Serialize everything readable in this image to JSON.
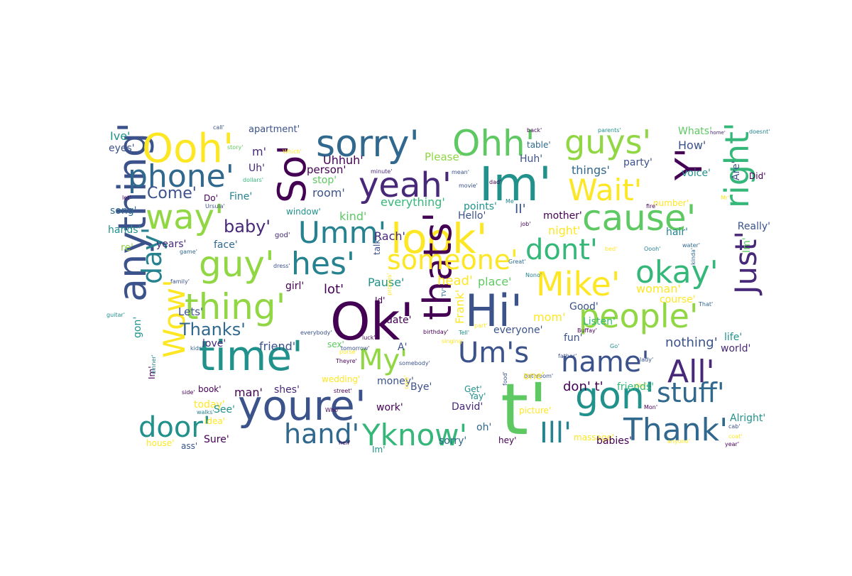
{
  "colors": {
    "background": "#ffffff",
    "palette": [
      "#440154",
      "#3b528b",
      "#21918c",
      "#5ec962",
      "#fde725",
      "#26828e",
      "#31688e",
      "#35b779",
      "#90d743",
      "#482878"
    ]
  },
  "words": [
    {
      "text": "t'",
      "size": 100,
      "color": "#5ec962",
      "v": false
    },
    {
      "text": "Ok'",
      "size": 72,
      "color": "#440154",
      "v": false
    },
    {
      "text": "Im'",
      "size": 66,
      "color": "#21918c",
      "v": false
    },
    {
      "text": "youre'",
      "size": 58,
      "color": "#3b528b",
      "v": false
    },
    {
      "text": "time'",
      "size": 58,
      "color": "#21918c",
      "v": false
    },
    {
      "text": "Hi'",
      "size": 62,
      "color": "#3b528b",
      "v": false
    },
    {
      "text": "look'",
      "size": 58,
      "color": "#fde725",
      "v": false
    },
    {
      "text": "thats'",
      "size": 54,
      "color": "#440154",
      "v": true
    },
    {
      "text": "anything'",
      "size": 54,
      "color": "#3b528b",
      "v": true
    },
    {
      "text": "So'",
      "size": 54,
      "color": "#440154",
      "v": true
    },
    {
      "text": "Ooh'",
      "size": 56,
      "color": "#fde725",
      "v": false
    },
    {
      "text": "sorry'",
      "size": 52,
      "color": "#31688e",
      "v": false
    },
    {
      "text": "Ohh'",
      "size": 50,
      "color": "#5ec962",
      "v": false
    },
    {
      "text": "guys'",
      "size": 46,
      "color": "#90d743",
      "v": false
    },
    {
      "text": "phone'",
      "size": 44,
      "color": "#31688e",
      "v": false
    },
    {
      "text": "yeah'",
      "size": 48,
      "color": "#482878",
      "v": false
    },
    {
      "text": "Wait'",
      "size": 42,
      "color": "#fde725",
      "v": false
    },
    {
      "text": "way'",
      "size": 48,
      "color": "#90d743",
      "v": false
    },
    {
      "text": "Umm'",
      "size": 42,
      "color": "#26828e",
      "v": false
    },
    {
      "text": "cause'",
      "size": 50,
      "color": "#5ec962",
      "v": false
    },
    {
      "text": "Y'",
      "size": 52,
      "color": "#440154",
      "v": true
    },
    {
      "text": "right'",
      "size": 46,
      "color": "#35b779",
      "v": true
    },
    {
      "text": "guy'",
      "size": 50,
      "color": "#90d743",
      "v": false
    },
    {
      "text": "hes'",
      "size": 44,
      "color": "#26828e",
      "v": false
    },
    {
      "text": "someone'",
      "size": 38,
      "color": "#fde725",
      "v": false
    },
    {
      "text": "dont'",
      "size": 40,
      "color": "#35b779",
      "v": false
    },
    {
      "text": "okay'",
      "size": 44,
      "color": "#35b779",
      "v": false
    },
    {
      "text": "Mike'",
      "size": 46,
      "color": "#fde725",
      "v": false
    },
    {
      "text": "Just'",
      "size": 42,
      "color": "#482878",
      "v": true
    },
    {
      "text": "thing'",
      "size": 50,
      "color": "#90d743",
      "v": false
    },
    {
      "text": "people'",
      "size": 46,
      "color": "#90d743",
      "v": false
    },
    {
      "text": "Um's",
      "size": 40,
      "color": "#3b528b",
      "v": false
    },
    {
      "text": "name'",
      "size": 40,
      "color": "#3b528b",
      "v": false
    },
    {
      "text": "All'",
      "size": 44,
      "color": "#482878",
      "v": false
    },
    {
      "text": "My'",
      "size": 40,
      "color": "#90d743",
      "v": false
    },
    {
      "text": "gon'",
      "size": 52,
      "color": "#21918c",
      "v": false
    },
    {
      "text": "stuff'",
      "size": 38,
      "color": "#31688e",
      "v": false
    },
    {
      "text": "Wow'",
      "size": 42,
      "color": "#fde725",
      "v": true
    },
    {
      "text": "day'",
      "size": 38,
      "color": "#26828e",
      "v": true
    },
    {
      "text": "door'",
      "size": 40,
      "color": "#21918c",
      "v": false
    },
    {
      "text": "hand'",
      "size": 38,
      "color": "#31688e",
      "v": false
    },
    {
      "text": "Yknow'",
      "size": 42,
      "color": "#35b779",
      "v": false
    },
    {
      "text": "Ill'",
      "size": 40,
      "color": "#26828e",
      "v": false
    },
    {
      "text": "Thank'",
      "size": 44,
      "color": "#31688e",
      "v": false
    },
    {
      "text": "baby'",
      "size": 24,
      "color": "#482878",
      "v": false
    },
    {
      "text": "Thanks'",
      "size": 24,
      "color": "#31688e",
      "v": false
    },
    {
      "text": "Come'",
      "size": 22,
      "color": "#3b528b",
      "v": false
    },
    {
      "text": "Ive'",
      "size": 16,
      "color": "#21918c",
      "v": false
    },
    {
      "text": "eyes'",
      "size": 14,
      "color": "#3b528b",
      "v": false
    },
    {
      "text": "call'",
      "size": 8,
      "color": "#3b528b",
      "v": false
    },
    {
      "text": "story'",
      "size": 8,
      "color": "#5ec962",
      "v": false
    },
    {
      "text": "apartment'",
      "size": 13,
      "color": "#3b528b",
      "v": false
    },
    {
      "text": "m'",
      "size": 16,
      "color": "#482878",
      "v": false
    },
    {
      "text": "Uh'",
      "size": 14,
      "color": "#482878",
      "v": false
    },
    {
      "text": "Uhhuh'",
      "size": 16,
      "color": "#440154",
      "v": false
    },
    {
      "text": "Please'",
      "size": 15,
      "color": "#90d743",
      "v": false
    },
    {
      "text": "Which'",
      "size": 8,
      "color": "#fde725",
      "v": false
    },
    {
      "text": "person'",
      "size": 15,
      "color": "#440154",
      "v": false
    },
    {
      "text": "dollars'",
      "size": 8,
      "color": "#35b779",
      "v": false
    },
    {
      "text": "Huh'",
      "size": 14,
      "color": "#3b528b",
      "v": false
    },
    {
      "text": "table'",
      "size": 12,
      "color": "#31688e",
      "v": false
    },
    {
      "text": "back'",
      "size": 8,
      "color": "#440154",
      "v": false
    },
    {
      "text": "parents'",
      "size": 8,
      "color": "#21918c",
      "v": false
    },
    {
      "text": "Whats'",
      "size": 14,
      "color": "#5ec962",
      "v": false
    },
    {
      "text": "doesnt'",
      "size": 8,
      "color": "#26828e",
      "v": false
    },
    {
      "text": "How'",
      "size": 16,
      "color": "#3b528b",
      "v": false
    },
    {
      "text": "home'",
      "size": 7,
      "color": "#482878",
      "v": false
    },
    {
      "text": "party'",
      "size": 14,
      "color": "#3b528b",
      "v": false
    },
    {
      "text": "voice'",
      "size": 14,
      "color": "#21918c",
      "v": false
    },
    {
      "text": "Are'",
      "size": 14,
      "color": "#3b528b",
      "v": true
    },
    {
      "text": "Did'",
      "size": 12,
      "color": "#440154",
      "v": false
    },
    {
      "text": "things'",
      "size": 16,
      "color": "#31688e",
      "v": false
    },
    {
      "text": "number'",
      "size": 12,
      "color": "#fde725",
      "v": false
    },
    {
      "text": "fire'",
      "size": 8,
      "color": "#440154",
      "v": false
    },
    {
      "text": "Mr'",
      "size": 8,
      "color": "#fde725",
      "v": false
    },
    {
      "text": "Me'",
      "size": 8,
      "color": "#26828e",
      "v": false
    },
    {
      "text": "II'",
      "size": 18,
      "color": "#3b528b",
      "v": false
    },
    {
      "text": "mother'",
      "size": 14,
      "color": "#440154",
      "v": false
    },
    {
      "text": "night'",
      "size": 16,
      "color": "#fde725",
      "v": false
    },
    {
      "text": "hair'",
      "size": 14,
      "color": "#26828e",
      "v": false
    },
    {
      "text": "water'",
      "size": 8,
      "color": "#31688e",
      "v": false
    },
    {
      "text": "Im'",
      "size": 14,
      "color": "#5ec962",
      "v": true
    },
    {
      "text": "Really'",
      "size": 14,
      "color": "#3b528b",
      "v": false
    },
    {
      "text": "bed'",
      "size": 8,
      "color": "#fde725",
      "v": false
    },
    {
      "text": "Oooh'",
      "size": 8,
      "color": "#26828e",
      "v": false
    },
    {
      "text": "kinda'",
      "size": 8,
      "color": "#31688e",
      "v": true
    },
    {
      "text": "job'",
      "size": 8,
      "color": "#440154",
      "v": false
    },
    {
      "text": "Nono'",
      "size": 8,
      "color": "#26828e",
      "v": false
    },
    {
      "text": "Great'",
      "size": 8,
      "color": "#31688e",
      "v": false
    },
    {
      "text": "let'",
      "size": 8,
      "color": "#440154",
      "v": false
    },
    {
      "text": "Do'",
      "size": 12,
      "color": "#440154",
      "v": false
    },
    {
      "text": "Fine'",
      "size": 14,
      "color": "#26828e",
      "v": false
    },
    {
      "text": "Ursula'",
      "size": 8,
      "color": "#3b528b",
      "v": false
    },
    {
      "text": "room'",
      "size": 16,
      "color": "#3b528b",
      "v": false
    },
    {
      "text": "stop'",
      "size": 14,
      "color": "#5ec962",
      "v": false
    },
    {
      "text": "mean'",
      "size": 8,
      "color": "#3b528b",
      "v": false
    },
    {
      "text": "dad'",
      "size": 8,
      "color": "#440154",
      "v": false
    },
    {
      "text": "movie'",
      "size": 8,
      "color": "#3b528b",
      "v": false
    },
    {
      "text": "minute'",
      "size": 8,
      "color": "#482878",
      "v": false
    },
    {
      "text": "everything'",
      "size": 16,
      "color": "#35b779",
      "v": false
    },
    {
      "text": "points'",
      "size": 14,
      "color": "#21918c",
      "v": false
    },
    {
      "text": "song'",
      "size": 14,
      "color": "#31688e",
      "v": false
    },
    {
      "text": "hands'",
      "size": 14,
      "color": "#21918c",
      "v": false
    },
    {
      "text": "window'",
      "size": 12,
      "color": "#21918c",
      "v": false
    },
    {
      "text": "kind'",
      "size": 16,
      "color": "#5ec962",
      "v": false
    },
    {
      "text": "Hello'",
      "size": 14,
      "color": "#3b528b",
      "v": false
    },
    {
      "text": "god'",
      "size": 10,
      "color": "#482878",
      "v": false
    },
    {
      "text": "years'",
      "size": 14,
      "color": "#482878",
      "v": false
    },
    {
      "text": "re'",
      "size": 14,
      "color": "#90d743",
      "v": false
    },
    {
      "text": "game'",
      "size": 8,
      "color": "#31688e",
      "v": false
    },
    {
      "text": "face'",
      "size": 14,
      "color": "#31688e",
      "v": false
    },
    {
      "text": "Rach'",
      "size": 16,
      "color": "#482878",
      "v": false
    },
    {
      "text": "talk'",
      "size": 12,
      "color": "#3b528b",
      "v": true
    },
    {
      "text": "dress'",
      "size": 8,
      "color": "#3b528b",
      "v": false
    },
    {
      "text": "family'",
      "size": 8,
      "color": "#3b528b",
      "v": false
    },
    {
      "text": "girl'",
      "size": 14,
      "color": "#440154",
      "v": false
    },
    {
      "text": "lot'",
      "size": 18,
      "color": "#440154",
      "v": false
    },
    {
      "text": "Pause'",
      "size": 16,
      "color": "#21918c",
      "v": false
    },
    {
      "text": "head'",
      "size": 18,
      "color": "#fde725",
      "v": false
    },
    {
      "text": "place'",
      "size": 16,
      "color": "#5ec962",
      "v": false
    },
    {
      "text": "woman'",
      "size": 16,
      "color": "#fde725",
      "v": false
    },
    {
      "text": "course'",
      "size": 14,
      "color": "#fde725",
      "v": false
    },
    {
      "text": "That'",
      "size": 8,
      "color": "#31688e",
      "v": false
    },
    {
      "text": "Id'",
      "size": 12,
      "color": "#440154",
      "v": false
    },
    {
      "text": "Lets'",
      "size": 15,
      "color": "#3b528b",
      "v": false
    },
    {
      "text": "guitar'",
      "size": 8,
      "color": "#21918c",
      "v": false
    },
    {
      "text": "date'",
      "size": 14,
      "color": "#440154",
      "v": false
    },
    {
      "text": "probles'",
      "size": 8,
      "color": "#fde725",
      "v": true
    },
    {
      "text": "TV'",
      "size": 8,
      "color": "#31688e",
      "v": true
    },
    {
      "text": "Frank'",
      "size": 16,
      "color": "#fde725",
      "v": true
    },
    {
      "text": "mom'",
      "size": 16,
      "color": "#fde725",
      "v": false
    },
    {
      "text": "Good'",
      "size": 14,
      "color": "#3b528b",
      "v": false
    },
    {
      "text": "Listen'",
      "size": 14,
      "color": "#35b779",
      "v": false
    },
    {
      "text": "Buffay'",
      "size": 8,
      "color": "#440154",
      "v": false
    },
    {
      "text": "gon'",
      "size": 14,
      "color": "#21918c",
      "v": true
    },
    {
      "text": "everybody'",
      "size": 8,
      "color": "#3b528b",
      "v": false
    },
    {
      "text": "birthday'",
      "size": 8,
      "color": "#440154",
      "v": false
    },
    {
      "text": "part'",
      "size": 8,
      "color": "#fde725",
      "v": false
    },
    {
      "text": "everyone'",
      "size": 14,
      "color": "#3b528b",
      "v": false
    },
    {
      "text": "Tell'",
      "size": 8,
      "color": "#21918c",
      "v": false
    },
    {
      "text": "fun'",
      "size": 14,
      "color": "#3b528b",
      "v": false
    },
    {
      "text": "Go'",
      "size": 8,
      "color": "#21918c",
      "v": false
    },
    {
      "text": "nothing'",
      "size": 18,
      "color": "#3b528b",
      "v": false
    },
    {
      "text": "life'",
      "size": 14,
      "color": "#21918c",
      "v": false
    },
    {
      "text": "world'",
      "size": 14,
      "color": "#482878",
      "v": false
    },
    {
      "text": "love'",
      "size": 14,
      "color": "#482878",
      "v": false
    },
    {
      "text": "friend'",
      "size": 16,
      "color": "#3b528b",
      "v": false
    },
    {
      "text": "sex'",
      "size": 12,
      "color": "#5ec962",
      "v": false
    },
    {
      "text": "luck'",
      "size": 8,
      "color": "#440154",
      "v": false
    },
    {
      "text": "singing'",
      "size": 8,
      "color": "#fde725",
      "v": false
    },
    {
      "text": "A'",
      "size": 14,
      "color": "#3b528b",
      "v": false
    },
    {
      "text": "purse'",
      "size": 8,
      "color": "#fde725",
      "v": false
    },
    {
      "text": "tomorrow'",
      "size": 8,
      "color": "#3b528b",
      "v": false
    },
    {
      "text": "kids'",
      "size": 8,
      "color": "#31688e",
      "v": false
    },
    {
      "text": "Im'",
      "size": 12,
      "color": "#440154",
      "v": true
    },
    {
      "text": "dinner'",
      "size": 8,
      "color": "#26828e",
      "v": true
    },
    {
      "text": "Theyre'",
      "size": 8,
      "color": "#440154",
      "v": false
    },
    {
      "text": "somebody'",
      "size": 8,
      "color": "#3b528b",
      "v": false
    },
    {
      "text": "bathroom'",
      "size": 8,
      "color": "#3b528b",
      "v": false
    },
    {
      "text": "father'",
      "size": 8,
      "color": "#3b528b",
      "v": false
    },
    {
      "text": "lady'",
      "size": 8,
      "color": "#3b528b",
      "v": false
    },
    {
      "text": "dog'",
      "size": 8,
      "color": "#fde725",
      "v": false
    },
    {
      "text": "food'",
      "size": 8,
      "color": "#3b528b",
      "v": true
    },
    {
      "text": "one'",
      "size": 14,
      "color": "#fde725",
      "v": false
    },
    {
      "text": "don' t'",
      "size": 18,
      "color": "#440154",
      "v": false
    },
    {
      "text": "friends'",
      "size": 14,
      "color": "#35b779",
      "v": false
    },
    {
      "text": "book'",
      "size": 12,
      "color": "#440154",
      "v": false
    },
    {
      "text": "man'",
      "size": 16,
      "color": "#440154",
      "v": false
    },
    {
      "text": "shes'",
      "size": 14,
      "color": "#482878",
      "v": false
    },
    {
      "text": "wedding'",
      "size": 12,
      "color": "#fde725",
      "v": false
    },
    {
      "text": "money'",
      "size": 14,
      "color": "#3b528b",
      "v": false
    },
    {
      "text": "Bye'",
      "size": 14,
      "color": "#3b528b",
      "v": false
    },
    {
      "text": "care'",
      "size": 8,
      "color": "#fde725",
      "v": true
    },
    {
      "text": "Get'",
      "size": 12,
      "color": "#21918c",
      "v": false
    },
    {
      "text": "Yay'",
      "size": 12,
      "color": "#21918c",
      "v": false
    },
    {
      "text": "side'",
      "size": 8,
      "color": "#440154",
      "v": false
    },
    {
      "text": "street'",
      "size": 8,
      "color": "#440154",
      "v": false
    },
    {
      "text": "today'",
      "size": 14,
      "color": "#fde725",
      "v": false
    },
    {
      "text": "See'",
      "size": 14,
      "color": "#21918c",
      "v": false
    },
    {
      "text": "work'",
      "size": 14,
      "color": "#440154",
      "v": false
    },
    {
      "text": "David'",
      "size": 14,
      "color": "#482878",
      "v": false
    },
    {
      "text": "picture'",
      "size": 12,
      "color": "#fde725",
      "v": false
    },
    {
      "text": "Mon'",
      "size": 8,
      "color": "#440154",
      "v": false
    },
    {
      "text": "walks'",
      "size": 8,
      "color": "#26828e",
      "v": false
    },
    {
      "text": "idea'",
      "size": 12,
      "color": "#fde725",
      "v": false
    },
    {
      "text": "Who'",
      "size": 8,
      "color": "#440154",
      "v": false
    },
    {
      "text": "oh'",
      "size": 14,
      "color": "#31688e",
      "v": false
    },
    {
      "text": "Alright'",
      "size": 14,
      "color": "#21918c",
      "v": false
    },
    {
      "text": "Sure'",
      "size": 14,
      "color": "#440154",
      "v": false
    },
    {
      "text": "house'",
      "size": 12,
      "color": "#fde725",
      "v": false
    },
    {
      "text": "ass'",
      "size": 12,
      "color": "#3b528b",
      "v": false
    },
    {
      "text": "hell'",
      "size": 8,
      "color": "#440154",
      "v": false
    },
    {
      "text": "Im'",
      "size": 12,
      "color": "#21918c",
      "v": false
    },
    {
      "text": "sorry'",
      "size": 14,
      "color": "#31688e",
      "v": false
    },
    {
      "text": "hey'",
      "size": 12,
      "color": "#440154",
      "v": false
    },
    {
      "text": "massage'",
      "size": 12,
      "color": "#fde725",
      "v": false
    },
    {
      "text": "babies'",
      "size": 14,
      "color": "#440154",
      "v": false
    },
    {
      "text": "anyone'",
      "size": 8,
      "color": "#fde725",
      "v": false
    },
    {
      "text": "year'",
      "size": 8,
      "color": "#440154",
      "v": false
    },
    {
      "text": "coat'",
      "size": 8,
      "color": "#fde725",
      "v": false
    },
    {
      "text": "cab'",
      "size": 8,
      "color": "#3b528b",
      "v": false
    }
  ]
}
